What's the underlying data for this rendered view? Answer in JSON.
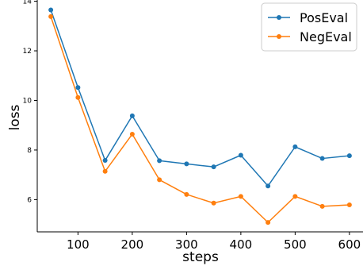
{
  "chart_data": {
    "type": "line",
    "xlabel": "steps",
    "ylabel": "loss",
    "x": [
      50,
      100,
      150,
      200,
      250,
      300,
      350,
      400,
      450,
      500,
      550,
      600
    ],
    "xlim": [
      25,
      625
    ],
    "ylim": [
      4.7,
      14.05
    ],
    "xticks": [
      100,
      200,
      300,
      400,
      500,
      600
    ],
    "yticks": [
      6,
      8,
      10,
      12,
      14
    ],
    "grid": false,
    "legend": "top-right",
    "series": [
      {
        "name": "PosEval",
        "color": "#1f77b4",
        "values": [
          13.65,
          10.52,
          7.58,
          9.38,
          7.57,
          7.44,
          7.32,
          7.79,
          6.55,
          8.13,
          7.66,
          7.77
        ]
      },
      {
        "name": "NegEval",
        "color": "#ff7f0e",
        "values": [
          13.38,
          10.12,
          7.14,
          8.64,
          6.8,
          6.21,
          5.86,
          6.13,
          5.08,
          6.13,
          5.73,
          5.79
        ]
      }
    ]
  }
}
